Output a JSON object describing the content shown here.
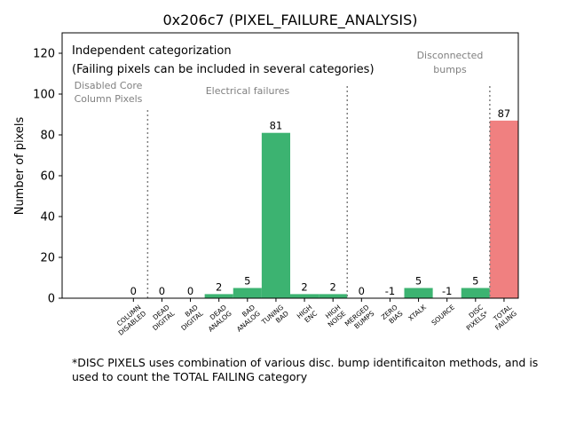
{
  "chart_data": {
    "type": "bar",
    "title": "0x206c7 (PIXEL_FAILURE_ANALYSIS)",
    "xlabel": "",
    "ylabel": "Number of pixels",
    "ylim": [
      0,
      130
    ],
    "yticks": [
      0,
      20,
      40,
      60,
      80,
      100,
      120
    ],
    "categories": [
      [
        "COLUMN",
        "DISABLED"
      ],
      [
        "DEAD",
        "DIGITAL"
      ],
      [
        "BAD",
        "DIGITAL"
      ],
      [
        "DEAD",
        "ANALOG"
      ],
      [
        "BAD",
        "ANALOG"
      ],
      [
        "TUNING",
        "BAD"
      ],
      [
        "HIGH",
        "ENC"
      ],
      [
        "HIGH",
        "NOISE"
      ],
      [
        "MERGED",
        "BUMPS"
      ],
      [
        "ZERO",
        "BIAS"
      ],
      [
        "XTALK"
      ],
      [
        "SOURCE"
      ],
      [
        "DISC",
        "PIXELS*"
      ],
      [
        "TOTAL",
        "FAILING"
      ]
    ],
    "values": [
      0,
      0,
      0,
      2,
      5,
      81,
      2,
      2,
      0,
      -1,
      5,
      -1,
      5,
      87
    ],
    "bar_colors": [
      "#3cb371",
      "#3cb371",
      "#3cb371",
      "#3cb371",
      "#3cb371",
      "#3cb371",
      "#3cb371",
      "#3cb371",
      "#3cb371",
      "#3cb371",
      "#3cb371",
      "#3cb371",
      "#3cb371",
      "#f08080"
    ],
    "section_dividers_after_category": [
      0,
      7,
      12
    ],
    "divider_color": "#808080",
    "grid": false,
    "annotations": {
      "independent": "Independent categorization",
      "independent_note": "(Failing pixels can be included in several categories)",
      "disabled_core": [
        "Disabled Core",
        "Column Pixels"
      ],
      "electrical": "Electrical failures",
      "disconnected": [
        "Disconnected",
        "bumps"
      ]
    }
  },
  "footnote": "*DISC PIXELS uses combination of various disc. bump identificaiton methods, and is used to count the TOTAL FAILING category"
}
